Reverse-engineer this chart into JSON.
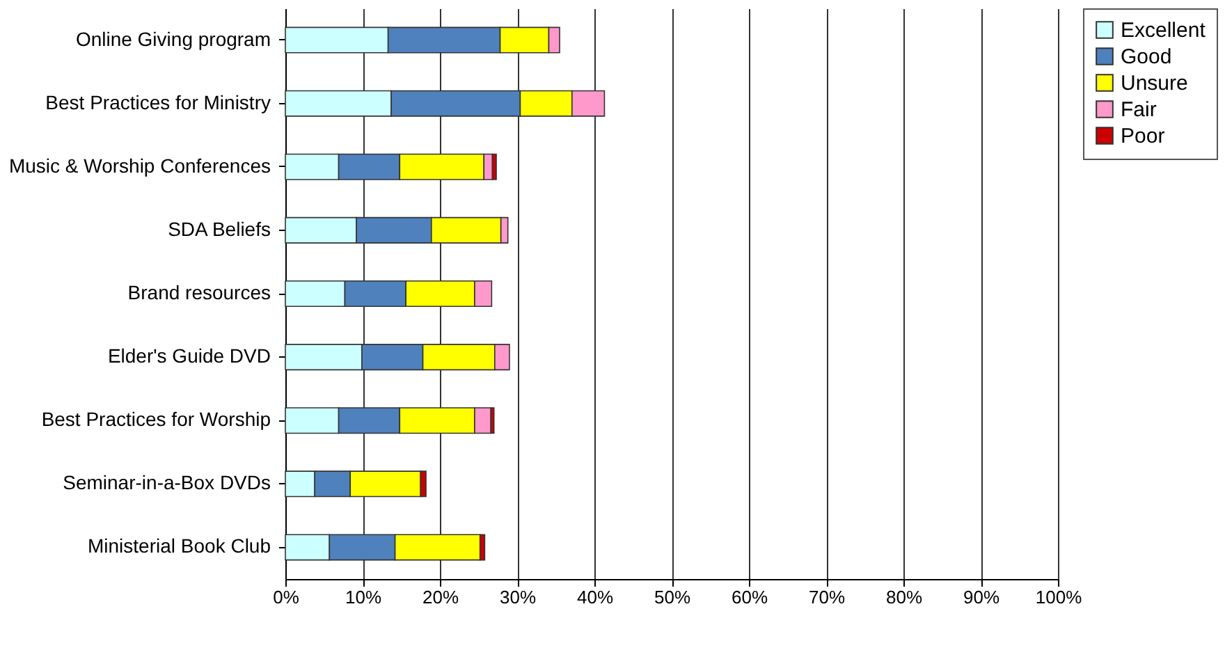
{
  "chart_data": {
    "type": "bar",
    "orientation": "horizontal",
    "stacked": true,
    "categories": [
      "Online Giving program",
      "Best Practices for Ministry",
      "Music & Worship Conferences",
      "SDA Beliefs",
      "Brand resources",
      "Elder's Guide DVD",
      "Best Practices for Worship",
      "Seminar-in-a-Box DVDs",
      "Ministerial Book Club"
    ],
    "series": [
      {
        "name": "Excellent",
        "color": "#ccffff",
        "values": [
          13.3,
          13.7,
          6.9,
          9.2,
          7.7,
          9.9,
          6.9,
          3.8,
          5.7
        ]
      },
      {
        "name": "Good",
        "color": "#4f81bd",
        "values": [
          14.5,
          16.7,
          7.9,
          9.7,
          7.9,
          7.9,
          7.9,
          4.6,
          8.5
        ]
      },
      {
        "name": "Unsure",
        "color": "#ffff00",
        "values": [
          6.3,
          6.7,
          10.9,
          9.0,
          8.9,
          9.3,
          9.7,
          9.1,
          11.0
        ]
      },
      {
        "name": "Fair",
        "color": "#ff99cc",
        "values": [
          1.4,
          4.2,
          1.1,
          0.9,
          2.2,
          1.9,
          2.1,
          null,
          null
        ]
      },
      {
        "name": "Poor",
        "color": "#cc0000",
        "values": [
          null,
          null,
          0.5,
          null,
          null,
          null,
          0.4,
          0.7,
          0.6
        ]
      }
    ],
    "xlim": [
      0,
      100
    ],
    "xticks": [
      {
        "value": 0,
        "label": "0%"
      },
      {
        "value": 10,
        "label": "10%"
      },
      {
        "value": 20,
        "label": "20%"
      },
      {
        "value": 30,
        "label": "30%"
      },
      {
        "value": 40,
        "label": "40%"
      },
      {
        "value": 50,
        "label": "50%"
      },
      {
        "value": 60,
        "label": "60%"
      },
      {
        "value": 70,
        "label": "70%"
      },
      {
        "value": 80,
        "label": "80%"
      },
      {
        "value": 90,
        "label": "90%"
      },
      {
        "value": 100,
        "label": "100%"
      }
    ],
    "grid": "x",
    "legend": "right"
  }
}
